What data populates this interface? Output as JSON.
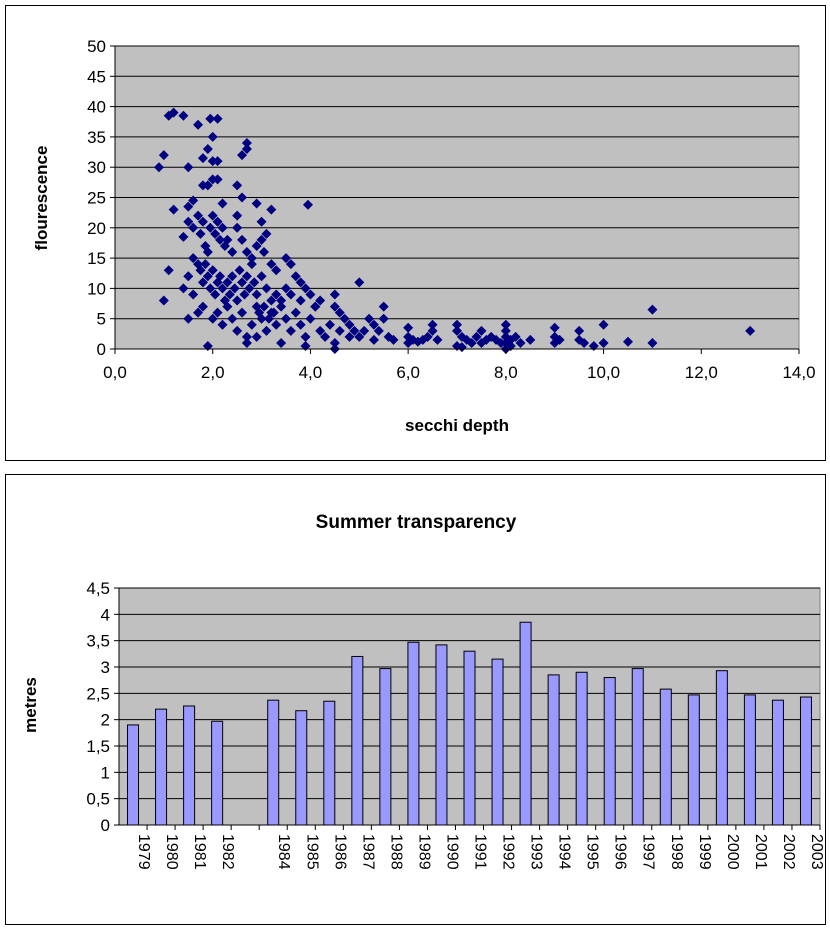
{
  "chart_data": [
    {
      "type": "scatter",
      "title": "",
      "xlabel": "secchi depth",
      "ylabel": "flourescence",
      "xlim": [
        0,
        14
      ],
      "ylim": [
        0,
        50
      ],
      "x_ticks": [
        "0,0",
        "2,0",
        "4,0",
        "6,0",
        "8,0",
        "10,0",
        "12,0",
        "14,0"
      ],
      "y_ticks": [
        "0",
        "5",
        "10",
        "15",
        "20",
        "25",
        "30",
        "35",
        "40",
        "45",
        "50"
      ],
      "grid": true,
      "legend": "none",
      "marker_color": "#000080",
      "plot_background": "#c0c0c0",
      "points": [
        [
          0.9,
          30
        ],
        [
          1.0,
          32
        ],
        [
          1.1,
          38.5
        ],
        [
          1.2,
          39
        ],
        [
          1.4,
          38.5
        ],
        [
          1.7,
          37
        ],
        [
          1.95,
          38
        ],
        [
          2.1,
          38
        ],
        [
          1.5,
          30
        ],
        [
          2.0,
          35
        ],
        [
          2.0,
          31
        ],
        [
          2.1,
          31
        ],
        [
          2.6,
          32
        ],
        [
          2.7,
          34
        ],
        [
          2.7,
          33
        ],
        [
          1.8,
          31.5
        ],
        [
          1.9,
          33
        ],
        [
          2.0,
          28
        ],
        [
          2.1,
          28
        ],
        [
          1.2,
          23
        ],
        [
          1.5,
          23.5
        ],
        [
          1.6,
          24.5
        ],
        [
          1.8,
          27
        ],
        [
          1.9,
          27
        ],
        [
          2.5,
          27
        ],
        [
          2.6,
          25
        ],
        [
          2.2,
          24
        ],
        [
          2.5,
          22
        ],
        [
          2.9,
          24
        ],
        [
          3.2,
          23
        ],
        [
          3.0,
          21
        ],
        [
          3.95,
          23.8
        ],
        [
          1.1,
          13
        ],
        [
          1.0,
          8
        ],
        [
          1.4,
          18.5
        ],
        [
          1.5,
          21
        ],
        [
          1.6,
          20
        ],
        [
          1.7,
          22
        ],
        [
          1.75,
          19
        ],
        [
          1.8,
          21
        ],
        [
          1.85,
          17
        ],
        [
          1.9,
          16
        ],
        [
          1.95,
          20
        ],
        [
          2.0,
          22
        ],
        [
          2.05,
          19
        ],
        [
          2.1,
          21
        ],
        [
          2.15,
          18
        ],
        [
          2.2,
          20
        ],
        [
          2.25,
          17
        ],
        [
          2.3,
          18
        ],
        [
          2.4,
          16
        ],
        [
          2.5,
          20
        ],
        [
          2.6,
          18
        ],
        [
          2.7,
          16
        ],
        [
          2.8,
          15
        ],
        [
          2.9,
          17
        ],
        [
          3.0,
          18
        ],
        [
          3.05,
          16
        ],
        [
          3.1,
          19
        ],
        [
          1.4,
          10
        ],
        [
          1.5,
          12
        ],
        [
          1.6,
          9
        ],
        [
          1.6,
          15
        ],
        [
          1.7,
          14
        ],
        [
          1.75,
          13
        ],
        [
          1.8,
          11
        ],
        [
          1.85,
          14
        ],
        [
          1.9,
          12
        ],
        [
          1.95,
          10
        ],
        [
          2.0,
          13
        ],
        [
          2.05,
          9
        ],
        [
          2.1,
          11
        ],
        [
          2.15,
          12
        ],
        [
          2.2,
          10
        ],
        [
          2.25,
          8
        ],
        [
          2.3,
          11
        ],
        [
          2.35,
          9
        ],
        [
          2.4,
          12
        ],
        [
          2.45,
          10
        ],
        [
          2.5,
          8
        ],
        [
          2.55,
          13
        ],
        [
          2.6,
          11
        ],
        [
          2.65,
          9
        ],
        [
          2.7,
          12
        ],
        [
          2.75,
          10
        ],
        [
          2.8,
          14
        ],
        [
          2.85,
          11
        ],
        [
          2.9,
          9
        ],
        [
          1.5,
          5
        ],
        [
          1.7,
          6
        ],
        [
          1.8,
          7
        ],
        [
          1.9,
          0.5
        ],
        [
          2.0,
          5
        ],
        [
          2.1,
          6
        ],
        [
          2.2,
          4
        ],
        [
          2.3,
          7
        ],
        [
          2.4,
          5
        ],
        [
          2.5,
          3
        ],
        [
          2.6,
          6
        ],
        [
          2.7,
          2
        ],
        [
          2.8,
          4
        ],
        [
          2.9,
          7
        ],
        [
          3.0,
          5
        ],
        [
          3.1,
          3
        ],
        [
          3.2,
          6
        ],
        [
          3.3,
          4
        ],
        [
          3.4,
          8
        ],
        [
          3.5,
          5
        ],
        [
          3.6,
          3
        ],
        [
          3.7,
          6
        ],
        [
          3.8,
          4
        ],
        [
          3.9,
          2
        ],
        [
          4.0,
          5
        ],
        [
          4.1,
          7
        ],
        [
          4.2,
          3
        ],
        [
          3.2,
          14
        ],
        [
          3.3,
          13
        ],
        [
          3.5,
          15
        ],
        [
          3.6,
          14
        ],
        [
          3.7,
          12
        ],
        [
          3.8,
          11
        ],
        [
          3.5,
          10
        ],
        [
          3.6,
          9
        ],
        [
          3.8,
          8
        ],
        [
          3.9,
          10
        ],
        [
          4.0,
          9
        ],
        [
          4.1,
          7
        ],
        [
          4.2,
          8
        ],
        [
          3.0,
          12
        ],
        [
          3.1,
          10
        ],
        [
          3.2,
          8
        ],
        [
          3.3,
          9
        ],
        [
          3.4,
          7
        ],
        [
          2.95,
          6
        ],
        [
          3.05,
          7
        ],
        [
          3.15,
          5
        ],
        [
          3.25,
          6
        ],
        [
          2.7,
          1
        ],
        [
          2.9,
          2
        ],
        [
          3.4,
          1
        ],
        [
          3.9,
          0.5
        ],
        [
          4.3,
          2
        ],
        [
          4.5,
          9
        ],
        [
          4.5,
          7
        ],
        [
          4.6,
          6
        ],
        [
          4.7,
          5
        ],
        [
          4.8,
          4
        ],
        [
          4.9,
          3
        ],
        [
          5.0,
          2
        ],
        [
          5.0,
          11
        ],
        [
          5.2,
          5
        ],
        [
          5.3,
          4
        ],
        [
          5.4,
          3
        ],
        [
          5.5,
          7
        ],
        [
          5.5,
          5
        ],
        [
          5.6,
          2
        ],
        [
          4.4,
          4
        ],
        [
          4.6,
          3
        ],
        [
          4.8,
          2
        ],
        [
          4.5,
          0
        ],
        [
          4.5,
          1
        ],
        [
          5.1,
          3
        ],
        [
          5.3,
          1.5
        ],
        [
          5.7,
          1.5
        ],
        [
          6.0,
          3.5
        ],
        [
          6.0,
          2
        ],
        [
          6.1,
          1.5
        ],
        [
          6.2,
          1.2
        ],
        [
          6.3,
          1.5
        ],
        [
          6.4,
          2
        ],
        [
          6.5,
          4
        ],
        [
          6.5,
          3
        ],
        [
          6.6,
          1.5
        ],
        [
          6.0,
          1
        ],
        [
          7.0,
          4
        ],
        [
          7.0,
          3
        ],
        [
          7.1,
          2
        ],
        [
          7.2,
          1.5
        ],
        [
          7.3,
          1
        ],
        [
          7.4,
          2
        ],
        [
          7.5,
          3
        ],
        [
          7.6,
          1.5
        ],
        [
          7.0,
          0.5
        ],
        [
          7.1,
          0.3
        ],
        [
          7.5,
          1
        ],
        [
          7.7,
          2
        ],
        [
          7.8,
          1.5
        ],
        [
          7.9,
          1
        ],
        [
          8.0,
          4
        ],
        [
          8.0,
          3
        ],
        [
          8.0,
          2
        ],
        [
          8.0,
          1
        ],
        [
          8.0,
          0
        ],
        [
          8.1,
          1.5
        ],
        [
          8.2,
          2
        ],
        [
          8.3,
          1
        ],
        [
          8.5,
          1.5
        ],
        [
          8.1,
          0.5
        ],
        [
          9.0,
          3.5
        ],
        [
          9.0,
          2
        ],
        [
          9.0,
          1
        ],
        [
          9.1,
          1.5
        ],
        [
          9.5,
          3
        ],
        [
          9.5,
          1.5
        ],
        [
          9.6,
          1
        ],
        [
          9.8,
          0.5
        ],
        [
          10.0,
          4
        ],
        [
          10.0,
          1
        ],
        [
          10.5,
          1.2
        ],
        [
          11.0,
          6.5
        ],
        [
          11.0,
          1
        ],
        [
          13.0,
          3
        ]
      ]
    },
    {
      "type": "bar",
      "title": "Summer transparency",
      "xlabel": "",
      "ylabel": "metres",
      "ylim": [
        0,
        4.5
      ],
      "y_ticks": [
        "0",
        "0,5",
        "1",
        "1,5",
        "2",
        "2,5",
        "3",
        "3,5",
        "4",
        "4,5"
      ],
      "grid": true,
      "legend": "none",
      "bar_color": "#9999ff",
      "plot_background": "#c0c0c0",
      "categories": [
        "1979",
        "1980",
        "1981",
        "1982",
        "",
        "1984",
        "1985",
        "1986",
        "1987",
        "1988",
        "1989",
        "1990",
        "1991",
        "1992",
        "1993",
        "1994",
        "1995",
        "1996",
        "1997",
        "1998",
        "1999",
        "2000",
        "2001",
        "2002",
        "2003"
      ],
      "values": [
        1.9,
        2.2,
        2.26,
        1.97,
        null,
        2.37,
        2.17,
        2.35,
        3.2,
        2.97,
        3.47,
        3.42,
        3.3,
        3.15,
        3.85,
        2.85,
        2.9,
        2.8,
        2.97,
        2.58,
        2.47,
        2.93,
        2.47,
        2.37,
        2.43
      ]
    }
  ]
}
